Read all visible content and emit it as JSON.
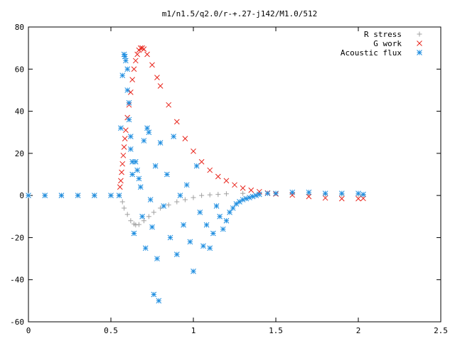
{
  "chart_data": {
    "type": "scatter",
    "title": "m1/n1.5/q2.0/r-+.27-j142/M1.0/512",
    "xlabel": "",
    "ylabel": "",
    "xlim": [
      0,
      2.5
    ],
    "ylim": [
      -60,
      80
    ],
    "grid": false,
    "legend_position": "top-right",
    "x_ticks": [
      "0",
      "0.5",
      "1",
      "1.5",
      "2",
      "2.5"
    ],
    "y_ticks": [
      "-60",
      "-40",
      "-20",
      "0",
      "20",
      "40",
      "60",
      "80"
    ],
    "series": [
      {
        "name": "R stress",
        "marker": "+",
        "color": "#a0a0a0",
        "x": [
          0.0,
          0.1,
          0.2,
          0.3,
          0.4,
          0.5,
          0.55,
          0.57,
          0.58,
          0.6,
          0.62,
          0.64,
          0.65,
          0.67,
          0.7,
          0.73,
          0.76,
          0.8,
          0.85,
          0.9,
          0.95,
          1.0,
          1.05,
          1.1,
          1.15,
          1.2,
          1.3,
          1.4,
          1.5,
          1.6,
          1.7,
          1.8,
          1.9,
          2.0,
          2.03
        ],
        "y": [
          0,
          0,
          0,
          0,
          0,
          0,
          0,
          -3,
          -6,
          -9,
          -12,
          -13.5,
          -14,
          -13.8,
          -12,
          -10,
          -8,
          -6,
          -4.5,
          -3,
          -2,
          -1,
          0,
          0.3,
          0.5,
          0.8,
          1,
          1,
          1,
          0.8,
          0.6,
          0.5,
          0.4,
          0.3,
          0.3
        ]
      },
      {
        "name": "G work",
        "marker": "x",
        "color": "#e8251c",
        "x": [
          0.555,
          0.56,
          0.565,
          0.57,
          0.575,
          0.58,
          0.585,
          0.59,
          0.6,
          0.61,
          0.62,
          0.63,
          0.64,
          0.65,
          0.66,
          0.67,
          0.68,
          0.69,
          0.7,
          0.72,
          0.75,
          0.78,
          0.8,
          0.85,
          0.9,
          0.95,
          1.0,
          1.05,
          1.1,
          1.15,
          1.2,
          1.25,
          1.3,
          1.35,
          1.4,
          1.45,
          1.5,
          1.6,
          1.7,
          1.8,
          1.9,
          2.0,
          2.03
        ],
        "y": [
          4,
          7,
          11,
          15,
          19,
          23,
          27,
          31,
          37,
          43,
          49,
          55,
          60,
          64,
          67,
          69,
          70,
          70,
          69.5,
          67,
          62,
          56,
          52,
          43,
          35,
          27,
          21,
          16,
          12,
          9,
          7,
          5,
          3.5,
          2.5,
          1.8,
          1.2,
          0.7,
          0.2,
          -0.5,
          -1.2,
          -1.5,
          -1.5,
          -1.4
        ]
      },
      {
        "name": "Acoustic flux",
        "marker": "*",
        "color": "#1f8ee0",
        "x": [
          0.0,
          0.1,
          0.2,
          0.3,
          0.4,
          0.5,
          0.55,
          0.56,
          0.57,
          0.58,
          0.585,
          0.59,
          0.6,
          0.6,
          0.61,
          0.61,
          0.62,
          0.62,
          0.63,
          0.63,
          0.64,
          0.65,
          0.66,
          0.67,
          0.68,
          0.69,
          0.7,
          0.71,
          0.72,
          0.73,
          0.74,
          0.75,
          0.76,
          0.77,
          0.78,
          0.79,
          0.8,
          0.82,
          0.84,
          0.86,
          0.88,
          0.9,
          0.92,
          0.94,
          0.96,
          0.98,
          1.0,
          1.02,
          1.04,
          1.06,
          1.08,
          1.1,
          1.12,
          1.14,
          1.16,
          1.18,
          1.2,
          1.22,
          1.24,
          1.26,
          1.28,
          1.3,
          1.32,
          1.34,
          1.36,
          1.38,
          1.4,
          1.45,
          1.5,
          1.6,
          1.7,
          1.8,
          1.9,
          2.0,
          2.03
        ],
        "y": [
          0,
          0,
          0,
          0,
          0,
          0,
          0,
          32,
          57,
          67,
          66,
          64,
          60,
          50,
          44,
          36,
          28,
          22,
          16,
          10,
          -18,
          16,
          12,
          8,
          4,
          -10,
          26,
          -25,
          32,
          30,
          -2,
          -15,
          -47,
          14,
          -30,
          -50,
          25,
          -5,
          10,
          -20,
          28,
          -28,
          0,
          -14,
          5,
          -22,
          -36,
          14,
          -8,
          -24,
          -14,
          -25,
          -18,
          -5,
          -10,
          -16,
          -12,
          -8,
          -6,
          -4,
          -3,
          -2,
          -1.5,
          -1,
          -0.5,
          0,
          0.5,
          1,
          1,
          1.5,
          1.5,
          1,
          1,
          1,
          0.5
        ]
      }
    ]
  }
}
